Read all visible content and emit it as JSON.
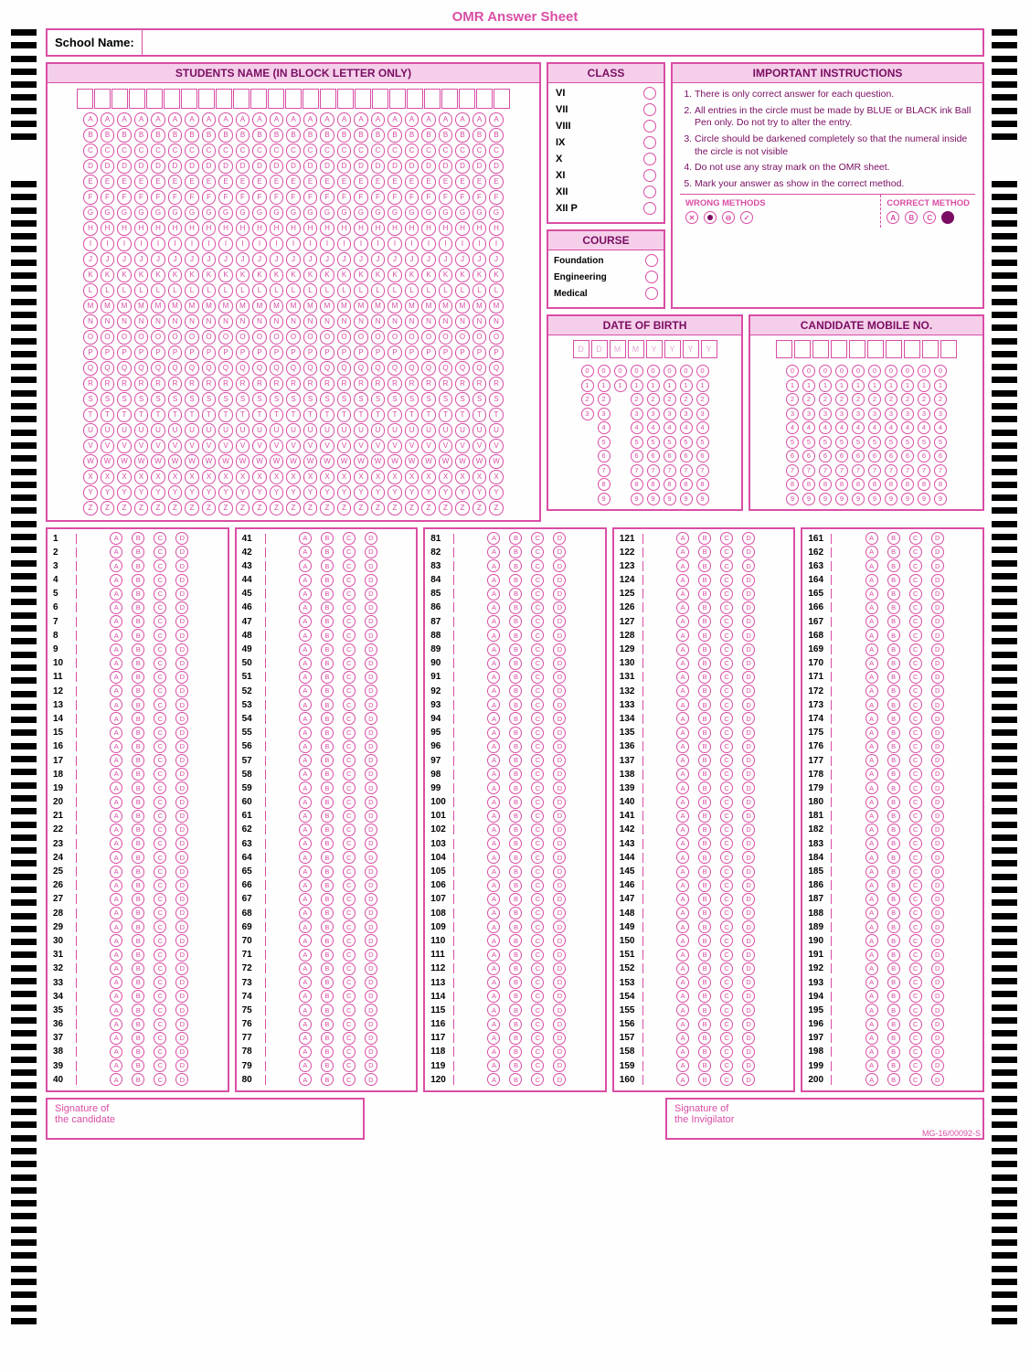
{
  "title": "OMR Answer Sheet",
  "school_label": "School Name:",
  "name_panel": {
    "header": "STUDENTS NAME (IN BLOCK LETTER ONLY)",
    "box_count": 25,
    "letters": [
      "A",
      "B",
      "C",
      "D",
      "E",
      "F",
      "G",
      "H",
      "I",
      "J",
      "K",
      "L",
      "M",
      "N",
      "O",
      "P",
      "Q",
      "R",
      "S",
      "T",
      "U",
      "V",
      "W",
      "X",
      "Y",
      "Z"
    ]
  },
  "class_panel": {
    "header": "CLASS",
    "options": [
      "VI",
      "VII",
      "VIII",
      "IX",
      "X",
      "XI",
      "XII",
      "XII P"
    ]
  },
  "course_panel": {
    "header": "COURSE",
    "options": [
      "Foundation",
      "Engineering",
      "Medical"
    ]
  },
  "instructions": {
    "header": "IMPORTANT INSTRUCTIONS",
    "items": [
      "There is only correct answer for each question.",
      "All entries in the circle must be made by BLUE or BLACK ink Ball Pen only. Do not try to alter the entry.",
      "Circle should be darkened completely so that the numeral inside the circle is not visible",
      "Do not use any stray mark on the OMR sheet.",
      "Mark your answer as show in the correct method."
    ],
    "wrong_label": "WRONG METHODS",
    "correct_label": "CORRECT METHOD",
    "correct_opts": [
      "A",
      "B",
      "C"
    ]
  },
  "dob": {
    "header": "DATE OF BIRTH",
    "boxes": [
      "D",
      "D",
      "M",
      "M",
      "Y",
      "Y",
      "Y",
      "Y"
    ],
    "col_max": [
      3,
      9,
      1,
      9,
      9,
      9,
      9,
      9
    ]
  },
  "mobile": {
    "header": "CANDIDATE MOBILE NO.",
    "box_count": 10
  },
  "answers": {
    "options": [
      "A",
      "B",
      "C",
      "D"
    ],
    "columns": 5,
    "per_column": 40,
    "total": 200
  },
  "signatures": {
    "candidate": "Signature of\nthe candidate",
    "invigilator": "Signature of\nthe Invigilator"
  },
  "footer_code": "MG-16/00092-S",
  "colors": {
    "primary": "#d94ea5",
    "dark": "#7a0d62",
    "light_fill": "#f5cfea"
  }
}
